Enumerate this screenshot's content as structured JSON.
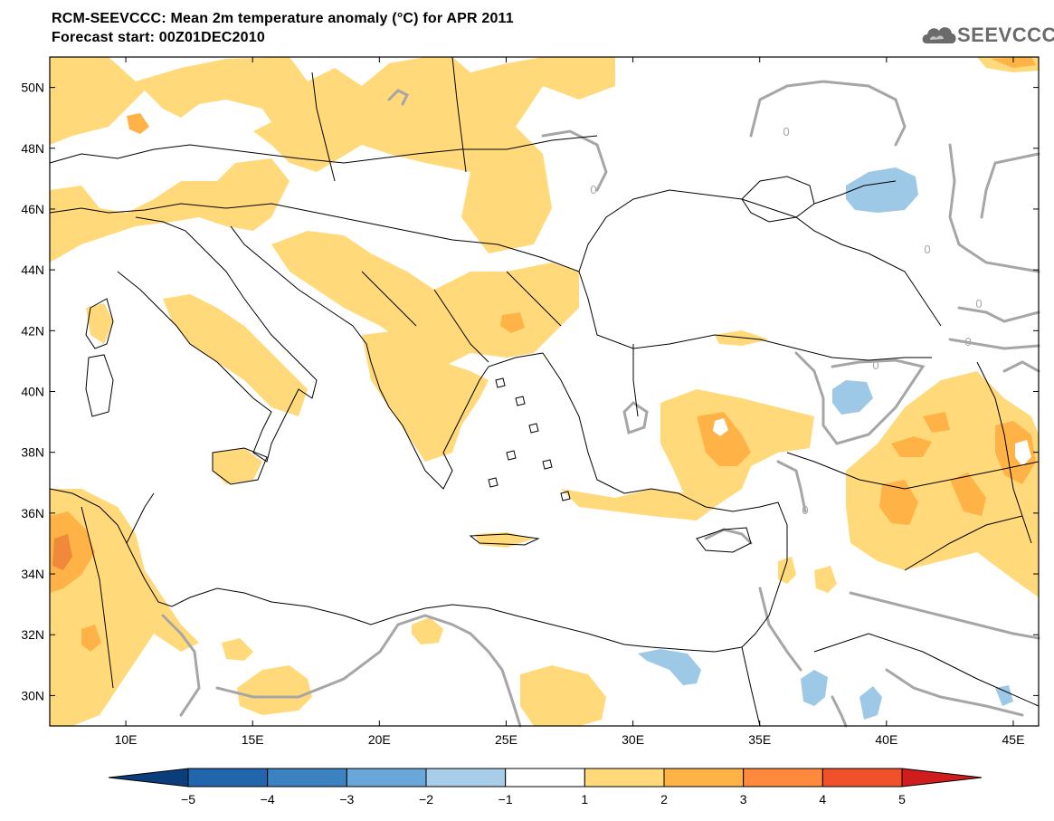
{
  "header": {
    "title": "RCM-SEEVCCC: Mean 2m temperature anomaly (°C) for APR 2011",
    "subtitle": "Forecast start: 00Z01DEC2010",
    "logo_text": "SEEVCCC"
  },
  "map": {
    "region": "Mediterranean / Black Sea / Middle East",
    "lon_range": [
      7,
      46
    ],
    "lat_range": [
      29,
      51
    ],
    "lon_ticks": [
      "10E",
      "15E",
      "20E",
      "25E",
      "30E",
      "35E",
      "40E",
      "45E"
    ],
    "lat_ticks": [
      "50N",
      "48N",
      "46N",
      "44N",
      "42N",
      "40N",
      "38N",
      "36N",
      "34N",
      "32N",
      "30N"
    ],
    "contour_label": "0",
    "contour_color": "#a6a6a6",
    "border_color": "#000000"
  },
  "colorbar": {
    "labels": [
      "-5",
      "-4",
      "-3",
      "-2",
      "-1",
      "1",
      "2",
      "3",
      "4",
      "5"
    ],
    "colors": [
      "#0a3d7a",
      "#2166ac",
      "#3c82c0",
      "#6aa7d8",
      "#a7cde9",
      "#ffffff",
      "#ffd97a",
      "#ffb347",
      "#ff8a3d",
      "#f0502a",
      "#d01c1c"
    ]
  },
  "anomaly_colors": {
    "1_to_2": "#ffd97a",
    "2_to_3": "#ffb347",
    "3_to_4": "#f08a3a",
    "4_to_5": "#f0502a",
    "neg_1_to_2": "#9dc9e6"
  }
}
